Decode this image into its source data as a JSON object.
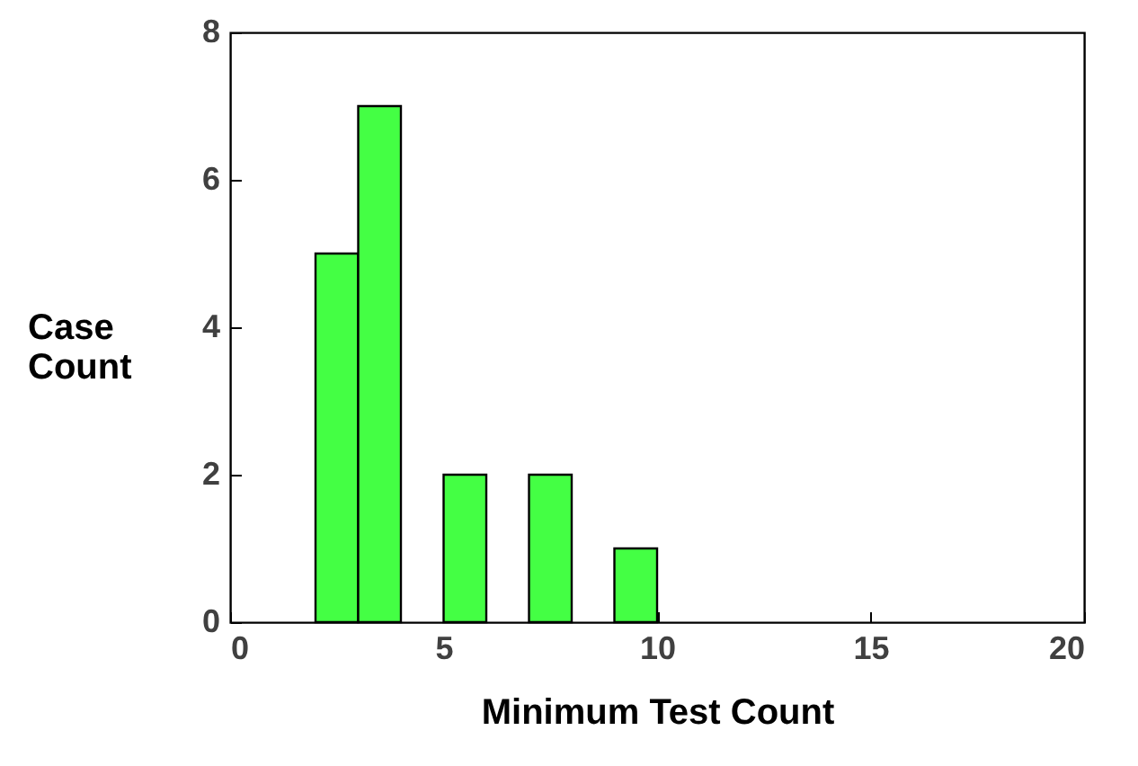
{
  "chart_data": {
    "type": "histogram",
    "xlabel": "Minimum Test Count",
    "ylabel": "Case Count",
    "bins": [
      2,
      3,
      4,
      5,
      6,
      7,
      8,
      9,
      10
    ],
    "values": [
      5,
      7,
      0,
      2,
      0,
      2,
      0,
      1
    ],
    "color": "#44ff44",
    "xlim": [
      0,
      20
    ],
    "xticks": [
      0,
      5,
      10,
      15,
      20
    ],
    "ylim": [
      0,
      8
    ],
    "yticks": [
      0,
      2,
      4,
      6,
      8
    ],
    "grid": false
  }
}
